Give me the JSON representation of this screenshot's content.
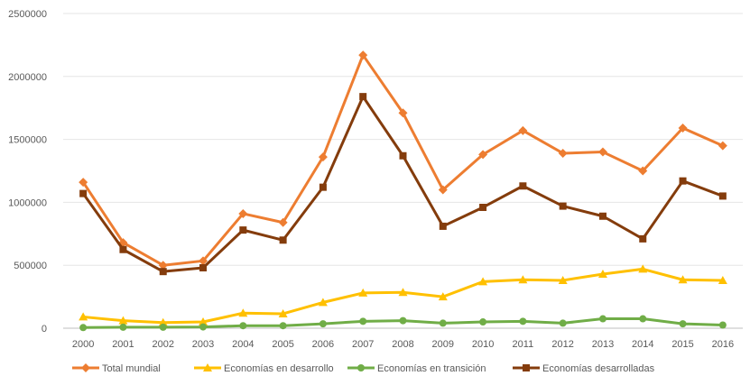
{
  "chart_data": {
    "type": "line",
    "title": "",
    "xlabel": "",
    "ylabel": "",
    "ylim": [
      0,
      2500000
    ],
    "yticks": [
      "0",
      "500000",
      "1000000",
      "1500000",
      "2000000",
      "2500000"
    ],
    "grid": true,
    "legend_position": "bottom",
    "categories": [
      "2000",
      "2001",
      "2002",
      "2003",
      "2004",
      "2005",
      "2006",
      "2007",
      "2008",
      "2009",
      "2010",
      "2011",
      "2012",
      "2013",
      "2014",
      "2015",
      "2016"
    ],
    "series": [
      {
        "name": "Total mundial",
        "color": "#ed7d31",
        "marker": "diamond",
        "values": [
          1160000,
          680000,
          500000,
          535000,
          910000,
          840000,
          1360000,
          2170000,
          1710000,
          1100000,
          1380000,
          1570000,
          1390000,
          1400000,
          1250000,
          1590000,
          1450000
        ]
      },
      {
        "name": "Economías en desarrollo",
        "color": "#ffc000",
        "marker": "triangle",
        "values": [
          90000,
          60000,
          45000,
          50000,
          120000,
          115000,
          205000,
          280000,
          285000,
          250000,
          370000,
          385000,
          380000,
          430000,
          470000,
          385000,
          380000
        ]
      },
      {
        "name": "Economías en transición",
        "color": "#70ad47",
        "marker": "circle",
        "values": [
          5000,
          8000,
          8000,
          10000,
          20000,
          20000,
          35000,
          55000,
          60000,
          40000,
          50000,
          55000,
          40000,
          75000,
          75000,
          35000,
          25000
        ]
      },
      {
        "name": "Economías desarrolladas",
        "color": "#843c0c",
        "marker": "square",
        "values": [
          1070000,
          625000,
          450000,
          480000,
          780000,
          700000,
          1120000,
          1840000,
          1370000,
          810000,
          960000,
          1130000,
          970000,
          890000,
          710000,
          1170000,
          1050000
        ]
      }
    ]
  }
}
